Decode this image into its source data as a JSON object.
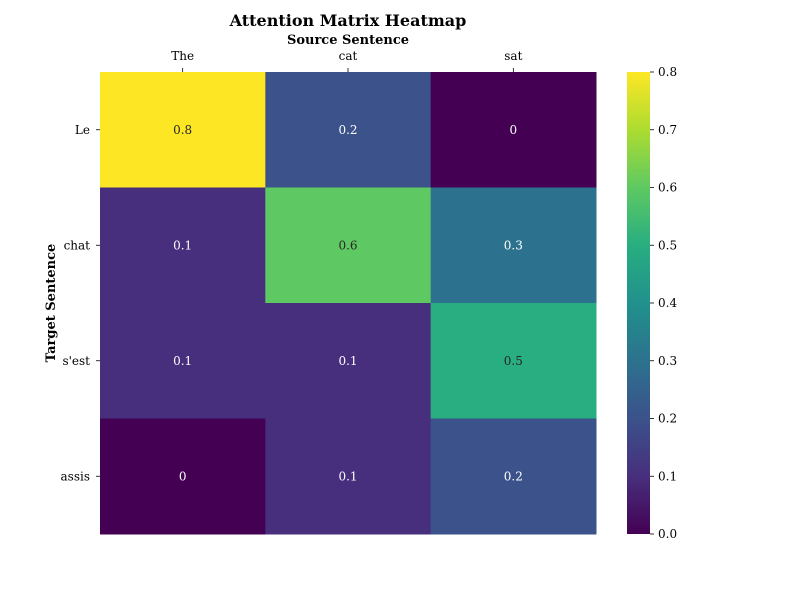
{
  "chart_data": {
    "type": "heatmap",
    "title": "Attention Matrix Heatmap",
    "xlabel": "Source Sentence",
    "ylabel": "Target Sentence",
    "x_categories": [
      "The",
      "cat",
      "sat"
    ],
    "y_categories": [
      "Le",
      "chat",
      "s'est",
      "assis"
    ],
    "values": [
      [
        0.8,
        0.2,
        0
      ],
      [
        0.1,
        0.6,
        0.3
      ],
      [
        0.1,
        0.1,
        0.5
      ],
      [
        0,
        0.1,
        0.2
      ]
    ],
    "cell_labels": [
      [
        "0.8",
        "0.2",
        "0"
      ],
      [
        "0.1",
        "0.6",
        "0.3"
      ],
      [
        "0.1",
        "0.1",
        "0.5"
      ],
      [
        "0",
        "0.1",
        "0.2"
      ]
    ],
    "colormap": "viridis",
    "vmin": 0.0,
    "vmax": 0.8,
    "colorbar_ticks": [
      0.0,
      0.1,
      0.2,
      0.3,
      0.4,
      0.5,
      0.6,
      0.7,
      0.8
    ],
    "colorbar_tick_labels": [
      "0.0",
      "0.1",
      "0.2",
      "0.3",
      "0.4",
      "0.5",
      "0.6",
      "0.7",
      "0.8"
    ],
    "x_axis_position": "top"
  }
}
